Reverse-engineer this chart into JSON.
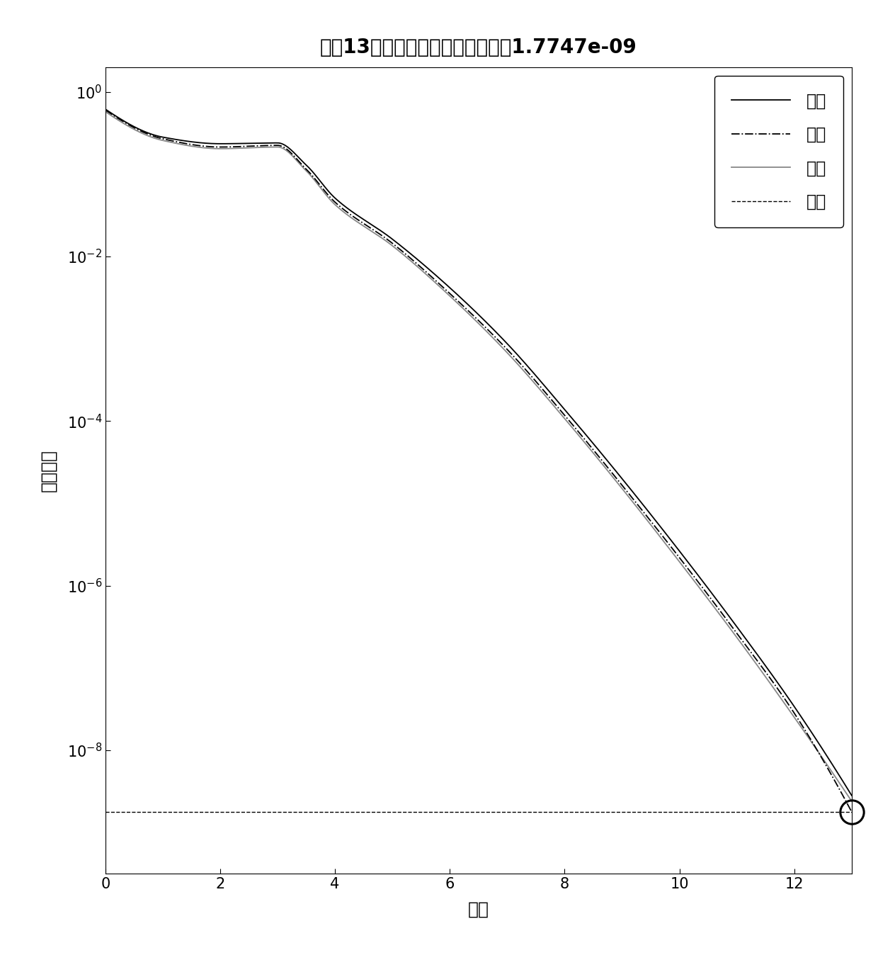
{
  "title": "在第13步时验证效果达到最优，为1.7747e-09",
  "xlabel": "步数",
  "ylabel": "均方误差",
  "best_value": 1.7747e-09,
  "legend_labels": [
    "训练",
    "验证",
    "测试",
    "最优"
  ],
  "background_color": "#ffffff",
  "title_fontsize": 20,
  "label_fontsize": 18,
  "tick_fontsize": 15,
  "legend_fontsize": 17,
  "train_log_y": [
    -0.21,
    -0.55,
    -0.63,
    -0.62,
    -0.89,
    -1.29,
    -1.79,
    -2.38,
    -3.06,
    -3.86,
    -4.7,
    -5.58,
    -6.5,
    -7.47,
    -8.55
  ],
  "val_log_y": [
    -0.22,
    -0.57,
    -0.67,
    -0.65,
    -0.94,
    -1.34,
    -1.84,
    -2.45,
    -3.13,
    -3.93,
    -4.78,
    -5.66,
    -6.58,
    -7.55,
    -8.75
  ],
  "test_log_y": [
    -0.24,
    -0.59,
    -0.69,
    -0.67,
    -0.96,
    -1.37,
    -1.87,
    -2.48,
    -3.17,
    -3.97,
    -4.82,
    -5.71,
    -6.63,
    -7.6,
    -8.62
  ],
  "x_steps": [
    0,
    1,
    2,
    3,
    3.5,
    4,
    5,
    6,
    7,
    8,
    9,
    10,
    11,
    12,
    13
  ]
}
